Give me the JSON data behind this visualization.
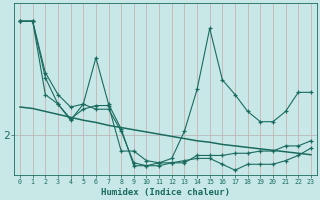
{
  "xlabel": "Humidex (Indice chaleur)",
  "bg_color": "#c8e8e8",
  "line_color": "#1a6b5e",
  "grid_vcolor": "#c8a8a8",
  "grid_hcolor": "#b8b8b8",
  "xmin": 0,
  "xmax": 23,
  "ytick_val": 2.0,
  "ytick_label": "2",
  "ylim": [
    1.45,
    3.8
  ],
  "series1": [
    3.55,
    3.55,
    2.78,
    2.42,
    2.2,
    2.42,
    2.35,
    2.35,
    2.05,
    1.62,
    1.58,
    1.58,
    1.62,
    1.62,
    1.72,
    1.72,
    1.72,
    1.75,
    1.75,
    1.78,
    1.78,
    1.85,
    1.85,
    1.92
  ],
  "series2": [
    3.55,
    3.55,
    2.85,
    2.55,
    2.38,
    2.42,
    3.05,
    2.42,
    2.08,
    1.58,
    1.58,
    1.62,
    1.68,
    2.05,
    2.62,
    3.45,
    2.75,
    2.55,
    2.32,
    2.18,
    2.18,
    2.32,
    2.58,
    2.58
  ],
  "series3": [
    3.55,
    3.55,
    2.55,
    2.42,
    2.22,
    2.35,
    2.4,
    2.4,
    1.78,
    1.78,
    1.65,
    1.62,
    1.62,
    1.65,
    1.68,
    1.68,
    1.6,
    1.52,
    1.6,
    1.6,
    1.6,
    1.65,
    1.72,
    1.82
  ],
  "smooth": [
    2.38,
    2.36,
    2.32,
    2.28,
    2.24,
    2.2,
    2.17,
    2.13,
    2.1,
    2.07,
    2.04,
    2.01,
    1.98,
    1.95,
    1.92,
    1.9,
    1.87,
    1.85,
    1.83,
    1.81,
    1.79,
    1.77,
    1.75,
    1.73
  ]
}
